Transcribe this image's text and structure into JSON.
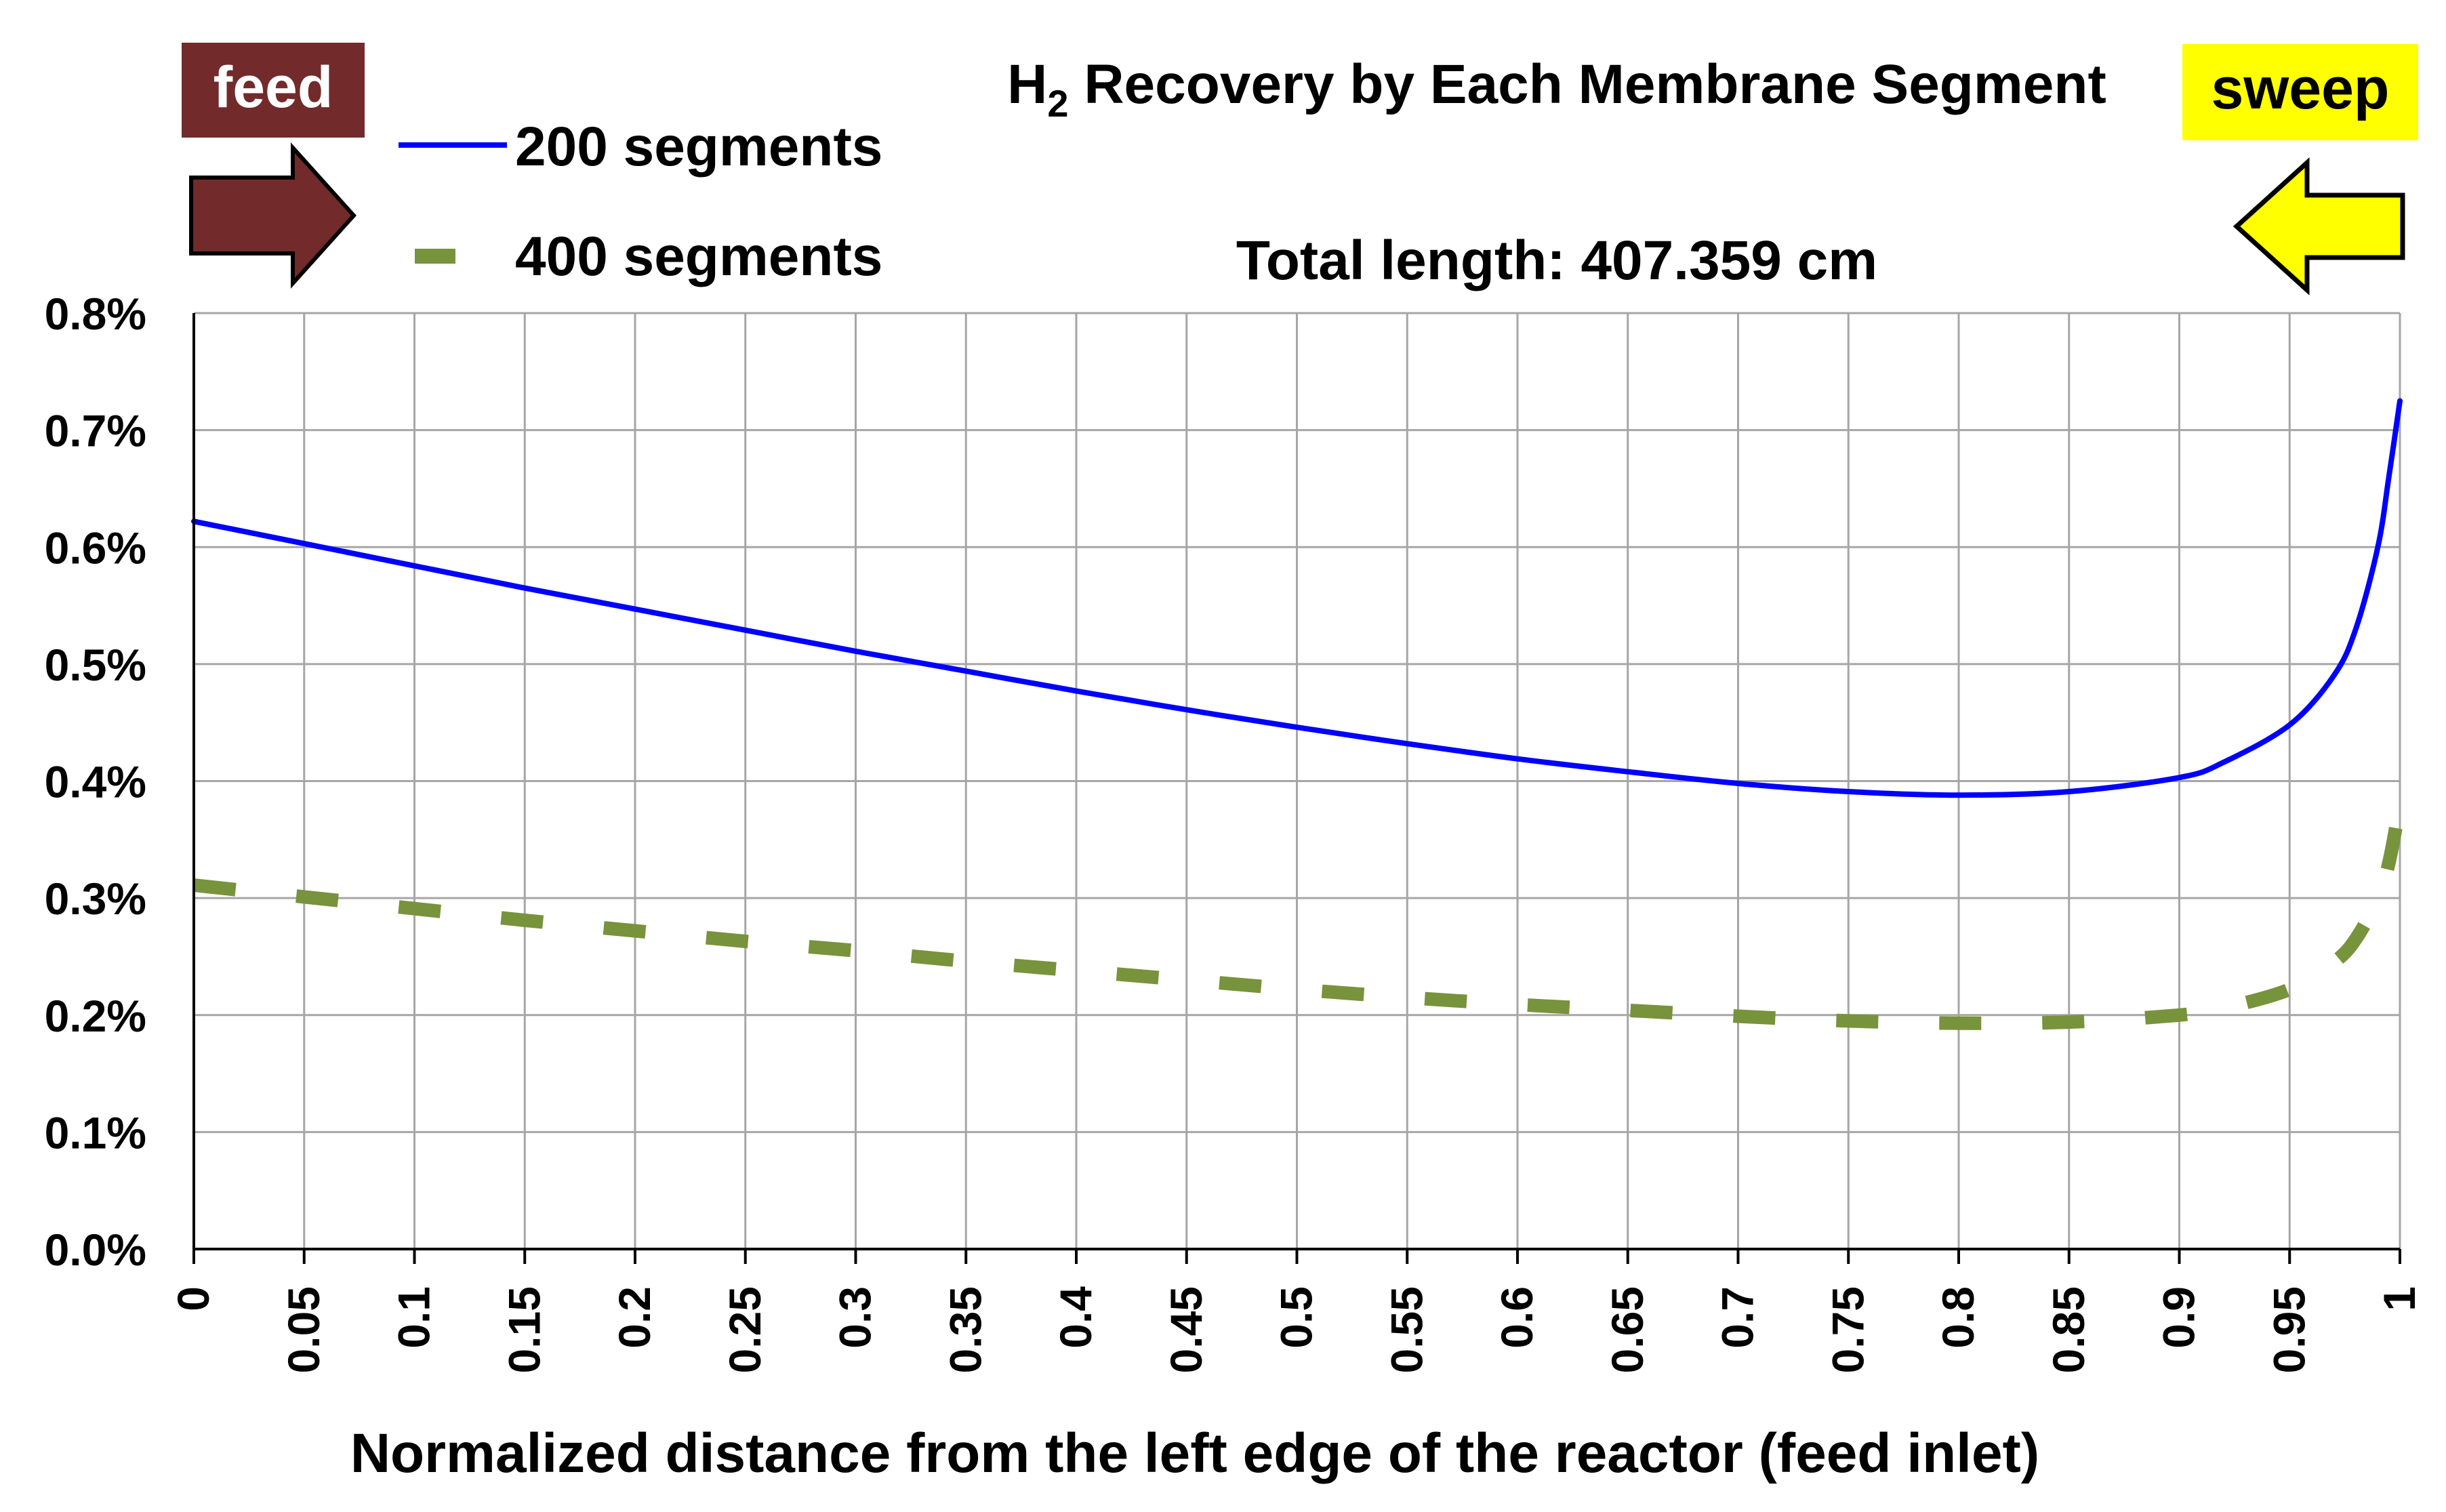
{
  "chart_data": {
    "type": "line",
    "title_main": "H",
    "title_subscript": "2",
    "title_rest": " Recovery by Each Membrane Segment",
    "subtitle": "Total length: 407.359 cm",
    "xlabel": "Normalized distance from the left edge of the reactor (feed inlet)",
    "ylabel": "",
    "xlim": [
      0,
      1
    ],
    "ylim": [
      0,
      0.8
    ],
    "x_ticks": [
      "0",
      "0.05",
      "0.1",
      "0.15",
      "0.2",
      "0.25",
      "0.3",
      "0.35",
      "0.4",
      "0.45",
      "0.5",
      "0.55",
      "0.6",
      "0.65",
      "0.7",
      "0.75",
      "0.8",
      "0.85",
      "0.9",
      "0.95",
      "1"
    ],
    "y_ticks": [
      "0.0%",
      "0.1%",
      "0.2%",
      "0.3%",
      "0.4%",
      "0.5%",
      "0.6%",
      "0.7%",
      "0.8%"
    ],
    "grid": true,
    "legend_position": "top-left",
    "series": [
      {
        "name": "200 segments",
        "color": "#0000FF",
        "style": "solid",
        "x": [
          0,
          0.05,
          0.1,
          0.15,
          0.2,
          0.25,
          0.3,
          0.35,
          0.4,
          0.45,
          0.5,
          0.55,
          0.6,
          0.65,
          0.7,
          0.75,
          0.8,
          0.85,
          0.9,
          0.92,
          0.95,
          0.97,
          0.98,
          0.99,
          0.995,
          1
        ],
        "y": [
          0.622,
          0.603,
          0.584,
          0.565,
          0.547,
          0.529,
          0.511,
          0.494,
          0.477,
          0.461,
          0.446,
          0.432,
          0.419,
          0.408,
          0.398,
          0.391,
          0.388,
          0.391,
          0.403,
          0.416,
          0.448,
          0.49,
          0.53,
          0.6,
          0.66,
          0.725
        ]
      },
      {
        "name": "400 segments",
        "color": "#77933C",
        "style": "dashed",
        "x": [
          0,
          0.05,
          0.1,
          0.15,
          0.2,
          0.25,
          0.3,
          0.35,
          0.4,
          0.45,
          0.5,
          0.55,
          0.6,
          0.65,
          0.7,
          0.75,
          0.8,
          0.85,
          0.9,
          0.92,
          0.95,
          0.97,
          0.98,
          0.99,
          0.995,
          1
        ],
        "y": [
          0.311,
          0.301,
          0.291,
          0.281,
          0.272,
          0.263,
          0.255,
          0.246,
          0.238,
          0.23,
          0.222,
          0.215,
          0.209,
          0.204,
          0.199,
          0.195,
          0.193,
          0.194,
          0.2,
          0.206,
          0.222,
          0.245,
          0.265,
          0.3,
          0.33,
          0.38
        ]
      }
    ],
    "annotations": {
      "feed_label": "feed",
      "feed_color": "#722A2A",
      "sweep_label": "sweep",
      "sweep_color": "#FFFF00"
    }
  }
}
